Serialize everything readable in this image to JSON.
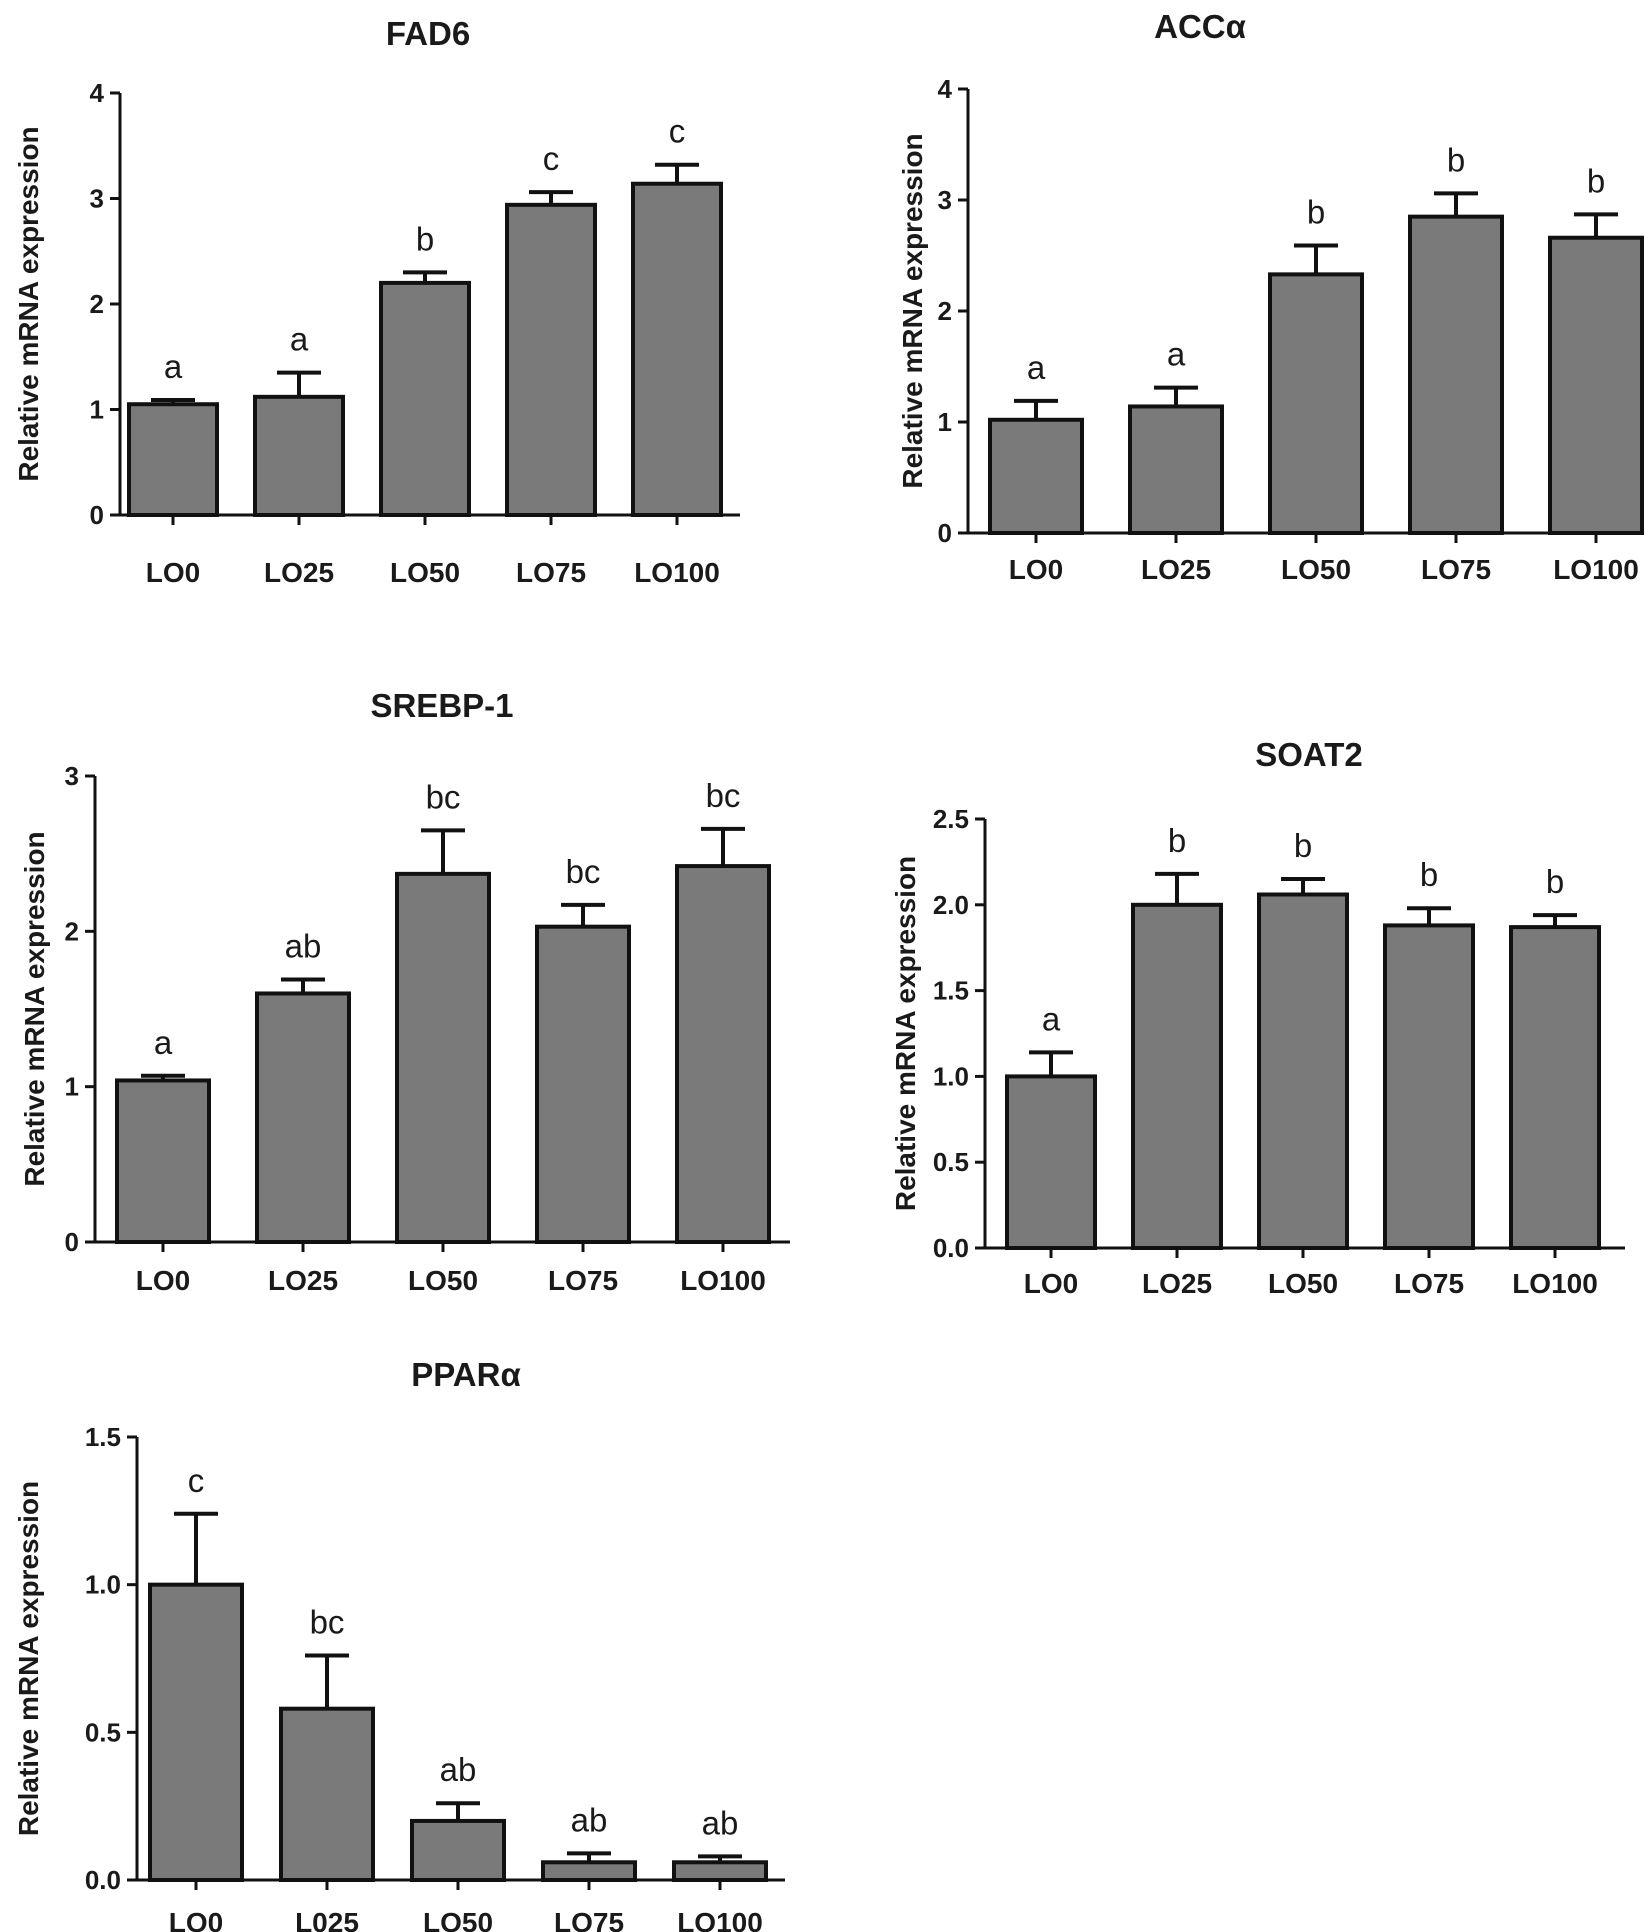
{
  "chart_data": [
    {
      "type": "bar",
      "title": "FAD6",
      "ylabel": "Relative mRNA expression",
      "xlabel": "",
      "ylim": [
        0,
        4
      ],
      "yticks": [
        "0",
        "1",
        "2",
        "3",
        "4"
      ],
      "categories": [
        "LO0",
        "LO25",
        "LO50",
        "LO75",
        "LO100"
      ],
      "values": [
        1.05,
        1.12,
        2.2,
        2.94,
        3.14
      ],
      "errors": [
        0.04,
        0.23,
        0.1,
        0.12,
        0.18
      ],
      "significance": [
        "a",
        "a",
        "b",
        "c",
        "c"
      ],
      "colors": {
        "bar": "#7a7a7a",
        "stroke": "#111111"
      }
    },
    {
      "type": "bar",
      "title": "ACCα",
      "ylabel": "Relative mRNA expression",
      "xlabel": "",
      "ylim": [
        0,
        4
      ],
      "yticks": [
        "0",
        "1",
        "2",
        "3",
        "4"
      ],
      "categories": [
        "LO0",
        "LO25",
        "LO50",
        "LO75",
        "LO100"
      ],
      "values": [
        1.02,
        1.14,
        2.33,
        2.85,
        2.66
      ],
      "errors": [
        0.17,
        0.17,
        0.26,
        0.21,
        0.21
      ],
      "significance": [
        "a",
        "a",
        "b",
        "b",
        "b"
      ],
      "colors": {
        "bar": "#7a7a7a",
        "stroke": "#111111"
      }
    },
    {
      "type": "bar",
      "title": "SREBP-1",
      "ylabel": "Relative mRNA expression",
      "xlabel": "",
      "ylim": [
        0,
        3
      ],
      "yticks": [
        "0",
        "1",
        "2",
        "3"
      ],
      "categories": [
        "LO0",
        "LO25",
        "LO50",
        "LO75",
        "LO100"
      ],
      "values": [
        1.04,
        1.6,
        2.37,
        2.03,
        2.42
      ],
      "errors": [
        0.03,
        0.09,
        0.28,
        0.14,
        0.24
      ],
      "significance": [
        "a",
        "ab",
        "bc",
        "bc",
        "bc"
      ],
      "colors": {
        "bar": "#7a7a7a",
        "stroke": "#111111"
      }
    },
    {
      "type": "bar",
      "title": "SOAT2",
      "ylabel": "Relative mRNA expression",
      "xlabel": "",
      "ylim": [
        0,
        2.5
      ],
      "yticks": [
        "0.0",
        "0.5",
        "1.0",
        "1.5",
        "2.0",
        "2.5"
      ],
      "categories": [
        "LO0",
        "LO25",
        "LO50",
        "LO75",
        "LO100"
      ],
      "values": [
        1.0,
        2.0,
        2.06,
        1.88,
        1.87
      ],
      "errors": [
        0.14,
        0.18,
        0.09,
        0.1,
        0.07
      ],
      "significance": [
        "a",
        "b",
        "b",
        "b",
        "b"
      ],
      "colors": {
        "bar": "#7a7a7a",
        "stroke": "#111111"
      }
    },
    {
      "type": "bar",
      "title": "PPARα",
      "ylabel": "Relative mRNA expression",
      "xlabel": "",
      "ylim": [
        0,
        1.5
      ],
      "yticks": [
        "0.0",
        "0.5",
        "1.0",
        "1.5"
      ],
      "categories": [
        "LO0",
        "L025",
        "LO50",
        "LO75",
        "LO100"
      ],
      "values": [
        1.0,
        0.58,
        0.2,
        0.06,
        0.06
      ],
      "errors": [
        0.24,
        0.18,
        0.06,
        0.03,
        0.02
      ],
      "significance": [
        "c",
        "bc",
        "ab",
        "ab",
        "ab"
      ],
      "colors": {
        "bar": "#7a7a7a",
        "stroke": "#111111"
      }
    }
  ]
}
